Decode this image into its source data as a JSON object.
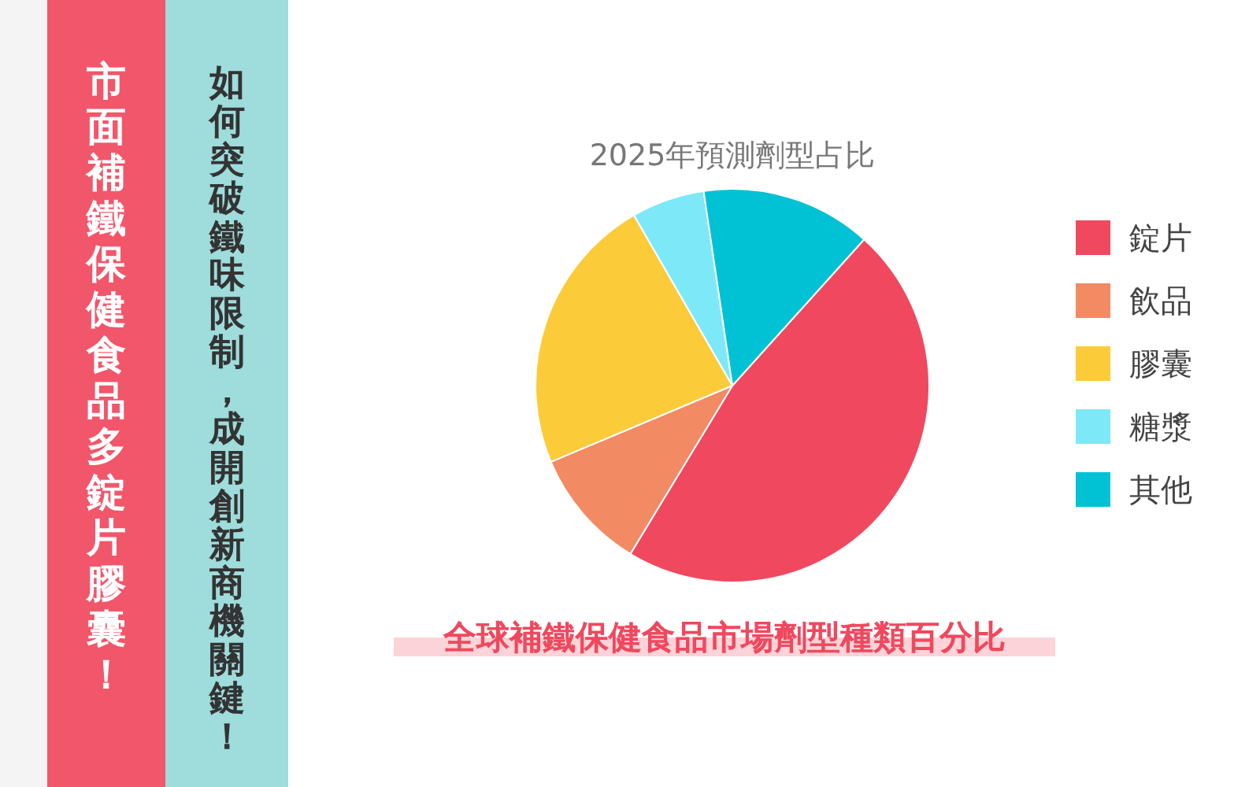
{
  "chart_data": {
    "type": "pie",
    "title": "2025年預測劑型占比",
    "subtitle": "全球補鐵保健食品市場劑型種類百分比",
    "categories": [
      "錠片",
      "飲品",
      "膠囊",
      "糖漿",
      "其他"
    ],
    "values": [
      47,
      10,
      23,
      6,
      14
    ],
    "colors": [
      "#f0485e",
      "#f28a63",
      "#fccb3a",
      "#7de9f8",
      "#00c2d4"
    ],
    "legend": "right",
    "annotations": [
      "市面補鐵保健食品多錠片膠囊！",
      "如何突破鐵味限制，成開創新商機關鍵！"
    ]
  }
}
